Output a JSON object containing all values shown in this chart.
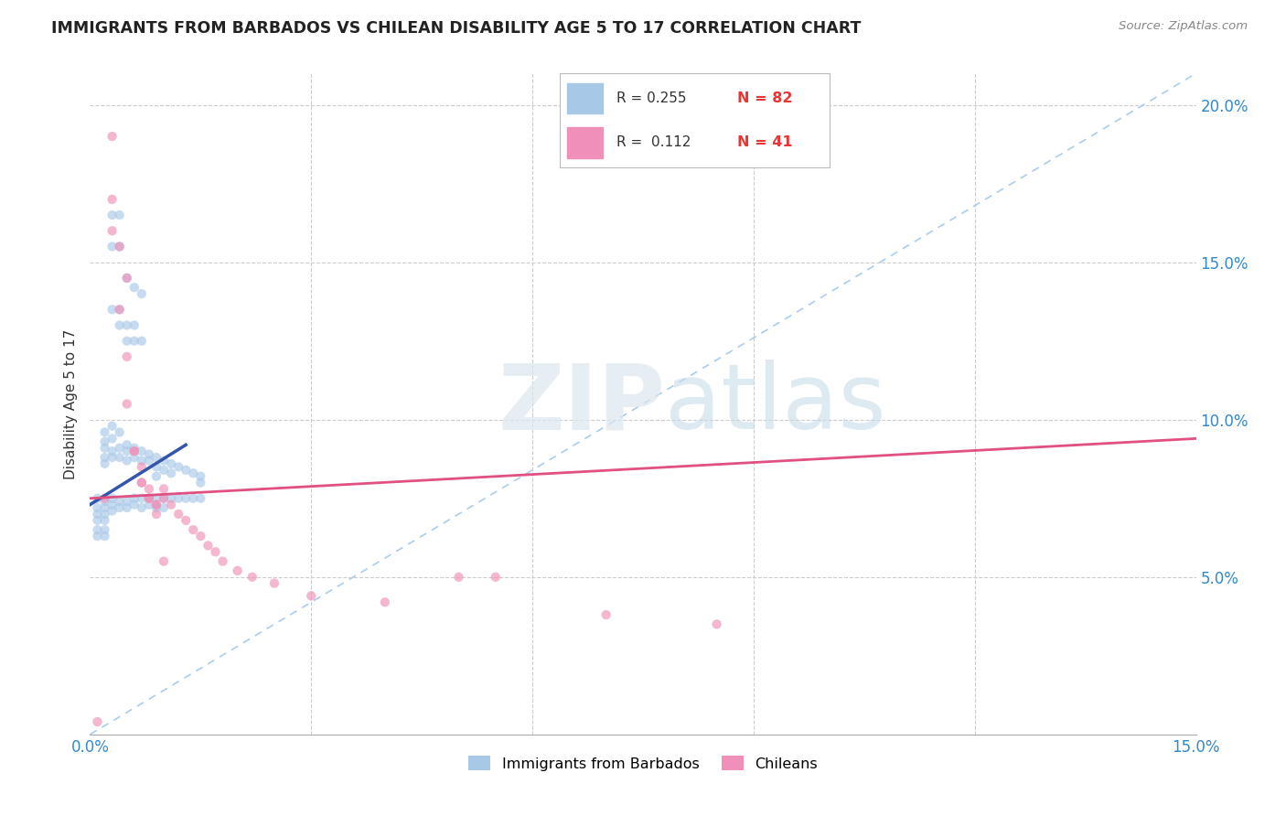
{
  "title": "IMMIGRANTS FROM BARBADOS VS CHILEAN DISABILITY AGE 5 TO 17 CORRELATION CHART",
  "source": "Source: ZipAtlas.com",
  "ylabel": "Disability Age 5 to 17",
  "xlim": [
    0.0,
    0.15
  ],
  "ylim": [
    0.0,
    0.21
  ],
  "color_blue": "#A8C8E8",
  "color_pink": "#F090B8",
  "color_line_blue": "#3355AA",
  "color_line_pink": "#E05080",
  "color_diag": "#AACCEE",
  "blue_x": [
    0.001,
    0.001,
    0.001,
    0.001,
    0.001,
    0.001,
    0.002,
    0.002,
    0.002,
    0.002,
    0.002,
    0.002,
    0.002,
    0.002,
    0.002,
    0.002,
    0.002,
    0.003,
    0.003,
    0.003,
    0.003,
    0.003,
    0.003,
    0.003,
    0.004,
    0.004,
    0.004,
    0.004,
    0.004,
    0.005,
    0.005,
    0.005,
    0.005,
    0.005,
    0.006,
    0.006,
    0.006,
    0.006,
    0.007,
    0.007,
    0.007,
    0.007,
    0.008,
    0.008,
    0.008,
    0.008,
    0.009,
    0.009,
    0.009,
    0.009,
    0.009,
    0.01,
    0.01,
    0.01,
    0.01,
    0.011,
    0.011,
    0.011,
    0.012,
    0.012,
    0.013,
    0.013,
    0.014,
    0.014,
    0.015,
    0.015,
    0.015,
    0.003,
    0.003,
    0.004,
    0.004,
    0.005,
    0.006,
    0.007,
    0.003,
    0.004,
    0.004,
    0.005,
    0.005,
    0.006,
    0.006,
    0.007
  ],
  "blue_y": [
    0.075,
    0.072,
    0.07,
    0.068,
    0.065,
    0.063,
    0.096,
    0.093,
    0.091,
    0.088,
    0.086,
    0.074,
    0.072,
    0.07,
    0.068,
    0.065,
    0.063,
    0.098,
    0.094,
    0.09,
    0.088,
    0.075,
    0.073,
    0.071,
    0.096,
    0.091,
    0.088,
    0.074,
    0.072,
    0.092,
    0.09,
    0.087,
    0.074,
    0.072,
    0.091,
    0.088,
    0.075,
    0.073,
    0.09,
    0.087,
    0.075,
    0.072,
    0.089,
    0.087,
    0.075,
    0.073,
    0.088,
    0.085,
    0.082,
    0.075,
    0.072,
    0.087,
    0.084,
    0.075,
    0.072,
    0.086,
    0.083,
    0.075,
    0.085,
    0.075,
    0.084,
    0.075,
    0.083,
    0.075,
    0.082,
    0.08,
    0.075,
    0.165,
    0.155,
    0.165,
    0.155,
    0.145,
    0.142,
    0.14,
    0.135,
    0.135,
    0.13,
    0.13,
    0.125,
    0.13,
    0.125,
    0.125
  ],
  "pink_x": [
    0.001,
    0.002,
    0.003,
    0.003,
    0.004,
    0.004,
    0.005,
    0.005,
    0.006,
    0.007,
    0.007,
    0.008,
    0.008,
    0.009,
    0.009,
    0.01,
    0.01,
    0.011,
    0.012,
    0.013,
    0.014,
    0.015,
    0.016,
    0.017,
    0.018,
    0.02,
    0.022,
    0.025,
    0.03,
    0.04,
    0.05,
    0.055,
    0.07,
    0.085,
    0.003,
    0.005,
    0.006,
    0.007,
    0.008,
    0.009,
    0.01
  ],
  "pink_y": [
    0.004,
    0.075,
    0.19,
    0.17,
    0.155,
    0.135,
    0.12,
    0.105,
    0.09,
    0.085,
    0.08,
    0.078,
    0.075,
    0.073,
    0.07,
    0.078,
    0.075,
    0.073,
    0.07,
    0.068,
    0.065,
    0.063,
    0.06,
    0.058,
    0.055,
    0.052,
    0.05,
    0.048,
    0.044,
    0.042,
    0.05,
    0.05,
    0.038,
    0.035,
    0.16,
    0.145,
    0.09,
    0.08,
    0.075,
    0.073,
    0.055
  ],
  "blue_line_x0": 0.0,
  "blue_line_x1": 0.013,
  "blue_line_y0": 0.073,
  "blue_line_y1": 0.092,
  "pink_line_x0": 0.0,
  "pink_line_x1": 0.15,
  "pink_line_y0": 0.075,
  "pink_line_y1": 0.094
}
